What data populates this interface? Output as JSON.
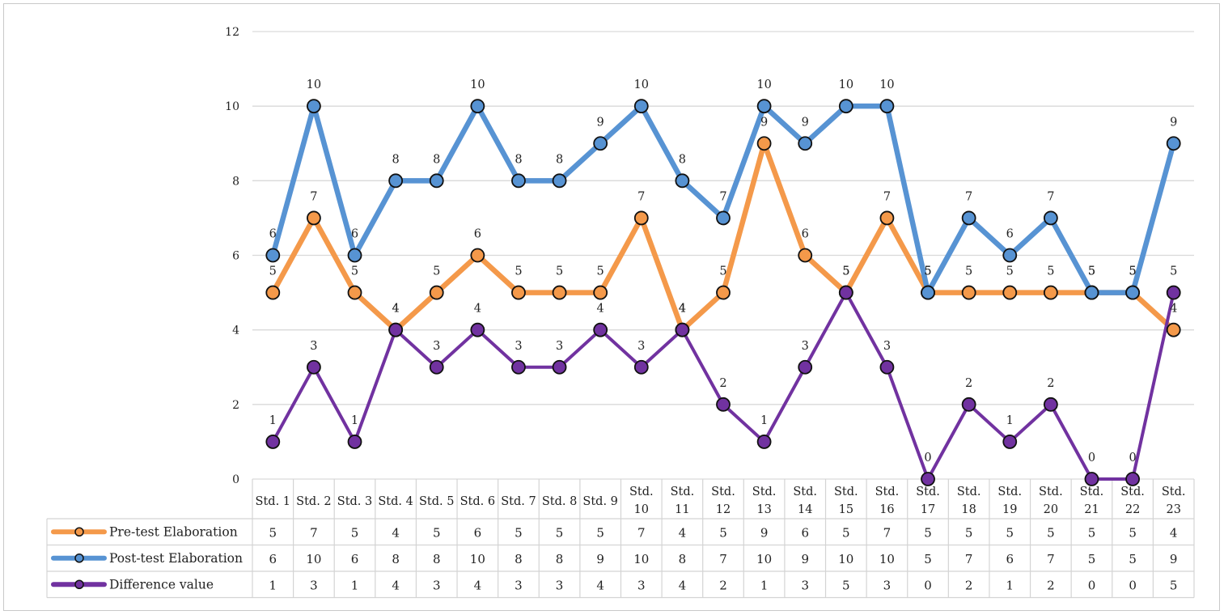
{
  "chart_data": {
    "type": "line",
    "categories": [
      [
        "Std. 1"
      ],
      [
        "Std. 2"
      ],
      [
        "Std. 3"
      ],
      [
        "Std. 4"
      ],
      [
        "Std. 5"
      ],
      [
        "Std. 6"
      ],
      [
        "Std. 7"
      ],
      [
        "Std. 8"
      ],
      [
        "Std. 9"
      ],
      [
        "Std.",
        "10"
      ],
      [
        "Std.",
        "11"
      ],
      [
        "Std.",
        "12"
      ],
      [
        "Std.",
        "13"
      ],
      [
        "Std.",
        "14"
      ],
      [
        "Std.",
        "15"
      ],
      [
        "Std.",
        "16"
      ],
      [
        "Std.",
        "17"
      ],
      [
        "Std.",
        "18"
      ],
      [
        "Std.",
        "19"
      ],
      [
        "Std.",
        "20"
      ],
      [
        "Std.",
        "21"
      ],
      [
        "Std.",
        "22"
      ],
      [
        "Std.",
        "23"
      ]
    ],
    "ylim": [
      0,
      12
    ],
    "yticks": [
      0,
      2,
      4,
      6,
      8,
      10,
      12
    ],
    "grid": true,
    "legend_placement": "data-table",
    "series": [
      {
        "name": "Pre-test Elaboration",
        "color": "#f4994a",
        "values": [
          5,
          7,
          5,
          4,
          5,
          6,
          5,
          5,
          5,
          7,
          4,
          5,
          9,
          6,
          5,
          7,
          5,
          5,
          5,
          5,
          5,
          5,
          4
        ]
      },
      {
        "name": "Post-test Elaboration",
        "color": "#5793d3",
        "values": [
          6,
          10,
          6,
          8,
          8,
          10,
          8,
          8,
          9,
          10,
          8,
          7,
          10,
          9,
          10,
          10,
          5,
          7,
          6,
          7,
          5,
          5,
          9
        ]
      },
      {
        "name": "Difference value",
        "color": "#7132a0",
        "values": [
          1,
          3,
          1,
          4,
          3,
          4,
          3,
          3,
          4,
          3,
          4,
          2,
          1,
          3,
          5,
          3,
          0,
          2,
          1,
          2,
          0,
          0,
          5
        ]
      }
    ]
  }
}
